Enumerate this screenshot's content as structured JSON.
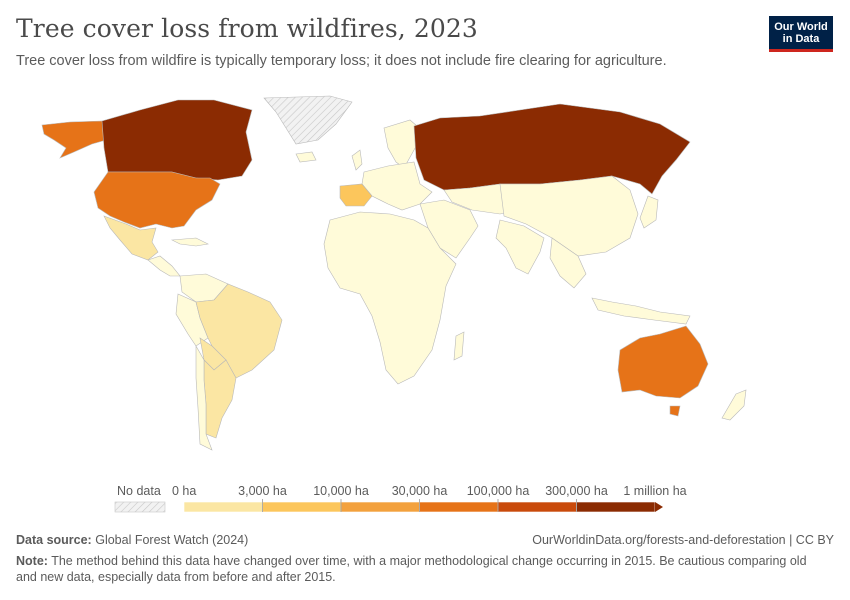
{
  "header": {
    "title": "Tree cover loss from wildfires, 2023",
    "subtitle": "Tree cover loss from wildfire is typically temporary loss; it does not include fire clearing for agriculture.",
    "logo_line1": "Our World",
    "logo_line2": "in Data"
  },
  "colors": {
    "no_data": "#e6e6e6",
    "bins": [
      "#fffbd9",
      "#fbe6a3",
      "#fcc65c",
      "#f3a13d",
      "#e67318",
      "#c94a0b",
      "#8b2b02"
    ]
  },
  "legend": {
    "no_data_label": "No data",
    "tick_labels": [
      "0 ha",
      "3,000 ha",
      "10,000 ha",
      "30,000 ha",
      "100,000 ha",
      "300,000 ha",
      "1 million ha"
    ],
    "thresholds_ha": [
      0,
      3000,
      10000,
      30000,
      100000,
      300000,
      1000000
    ]
  },
  "map_regions": [
    {
      "region": "Canada",
      "bin": 6
    },
    {
      "region": "Russia",
      "bin": 6
    },
    {
      "region": "United States",
      "bin": 4
    },
    {
      "region": "Alaska",
      "bin": 4
    },
    {
      "region": "Australia",
      "bin": 4
    },
    {
      "region": "Tasmania",
      "bin": 4
    },
    {
      "region": "Spain",
      "bin": 2
    },
    {
      "region": "Brazil",
      "bin": 1
    },
    {
      "region": "Argentina",
      "bin": 1
    },
    {
      "region": "Mexico",
      "bin": 1
    },
    {
      "region": "Bolivia",
      "bin": 1
    },
    {
      "region": "Greenland",
      "bin": null
    }
  ],
  "footer": {
    "source_label": "Data source:",
    "source_text": "Global Forest Watch (2024)",
    "url": "OurWorldinData.org/forests-and-deforestation | CC BY",
    "note_label": "Note:",
    "note_text": "The method behind this data have changed over time, with a major methodological change occurring in 2015. Be cautious comparing old and new data, especially data from before and after 2015."
  }
}
